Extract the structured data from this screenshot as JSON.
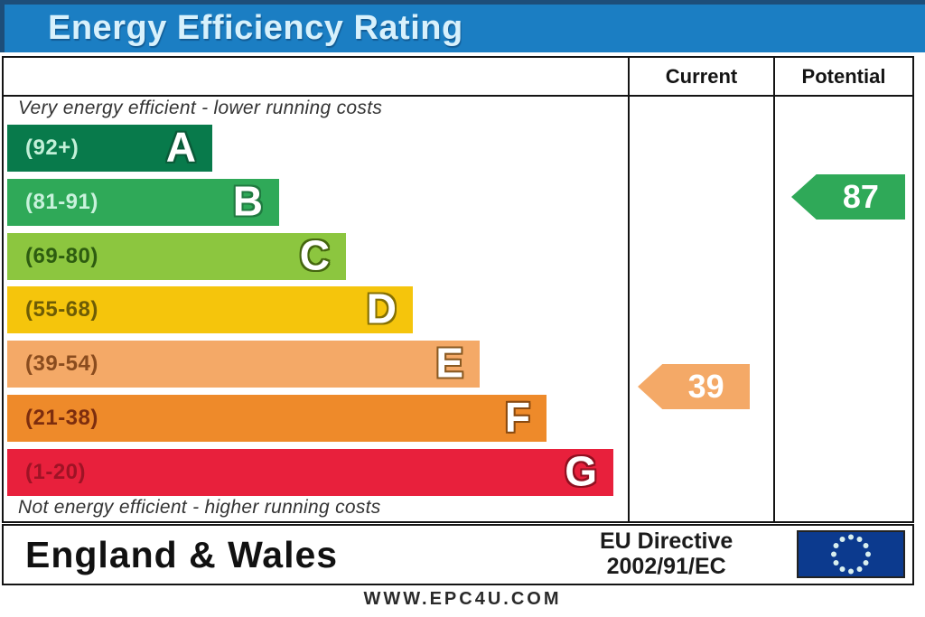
{
  "title": "Energy Efficiency Rating",
  "columns": {
    "current": "Current",
    "potential": "Potential"
  },
  "notes": {
    "top": "Very energy efficient - lower running costs",
    "bottom": "Not energy efficient - higher running costs"
  },
  "bands": [
    {
      "letter": "A",
      "range": "(92+)",
      "color": "#087a4b",
      "label_color": "#c2f0d8",
      "outline": "#0a5a38"
    },
    {
      "letter": "B",
      "range": "(81-91)",
      "color": "#2fa958",
      "label_color": "#c9f2dc",
      "outline": "#207a40"
    },
    {
      "letter": "C",
      "range": "(69-80)",
      "color": "#8cc63f",
      "label_color": "#2d5c10",
      "outline": "#44660f"
    },
    {
      "letter": "D",
      "range": "(55-68)",
      "color": "#f5c50c",
      "label_color": "#6d5c06",
      "outline": "#857003"
    },
    {
      "letter": "E",
      "range": "(39-54)",
      "color": "#f4a967",
      "label_color": "#8a4c1e",
      "outline": "#8a5a22"
    },
    {
      "letter": "F",
      "range": "(21-38)",
      "color": "#ee8a2a",
      "label_color": "#7c2d0e",
      "outline": "#8a4a10"
    },
    {
      "letter": "G",
      "range": "(1-20)",
      "color": "#e8203c",
      "label_color": "#9e1325",
      "outline": "#8f1020"
    }
  ],
  "current": {
    "value": "39",
    "band": "E",
    "color": "#f4a967"
  },
  "potential": {
    "value": "87",
    "band": "B",
    "color": "#2fa958"
  },
  "footer": {
    "region": "England & Wales",
    "directive_line1": "EU Directive",
    "directive_line2": "2002/91/EC",
    "flag_color": "#0c3a8e",
    "star_color": "#d9efef"
  },
  "website": "WWW.EPC4U.COM",
  "chart_data": {
    "type": "bar",
    "title": "Energy Efficiency Rating",
    "orientation": "horizontal",
    "categories": [
      "A",
      "B",
      "C",
      "D",
      "E",
      "F",
      "G"
    ],
    "band_ranges": [
      "92+",
      "81-91",
      "69-80",
      "55-68",
      "39-54",
      "21-38",
      "1-20"
    ],
    "band_colors": [
      "#087a4b",
      "#2fa958",
      "#8cc63f",
      "#f5c50c",
      "#f4a967",
      "#ee8a2a",
      "#e8203c"
    ],
    "bar_relative_widths": [
      227,
      301,
      375,
      449,
      523,
      597,
      671
    ],
    "series": [
      {
        "name": "Current",
        "value": 39,
        "band": "E"
      },
      {
        "name": "Potential",
        "value": 87,
        "band": "B"
      }
    ],
    "scale": [
      1,
      100
    ],
    "top_annotation": "Very energy efficient - lower running costs",
    "bottom_annotation": "Not energy efficient - higher running costs",
    "footer": "England & Wales | EU Directive 2002/91/EC",
    "legend_position": "none",
    "grid": false
  }
}
